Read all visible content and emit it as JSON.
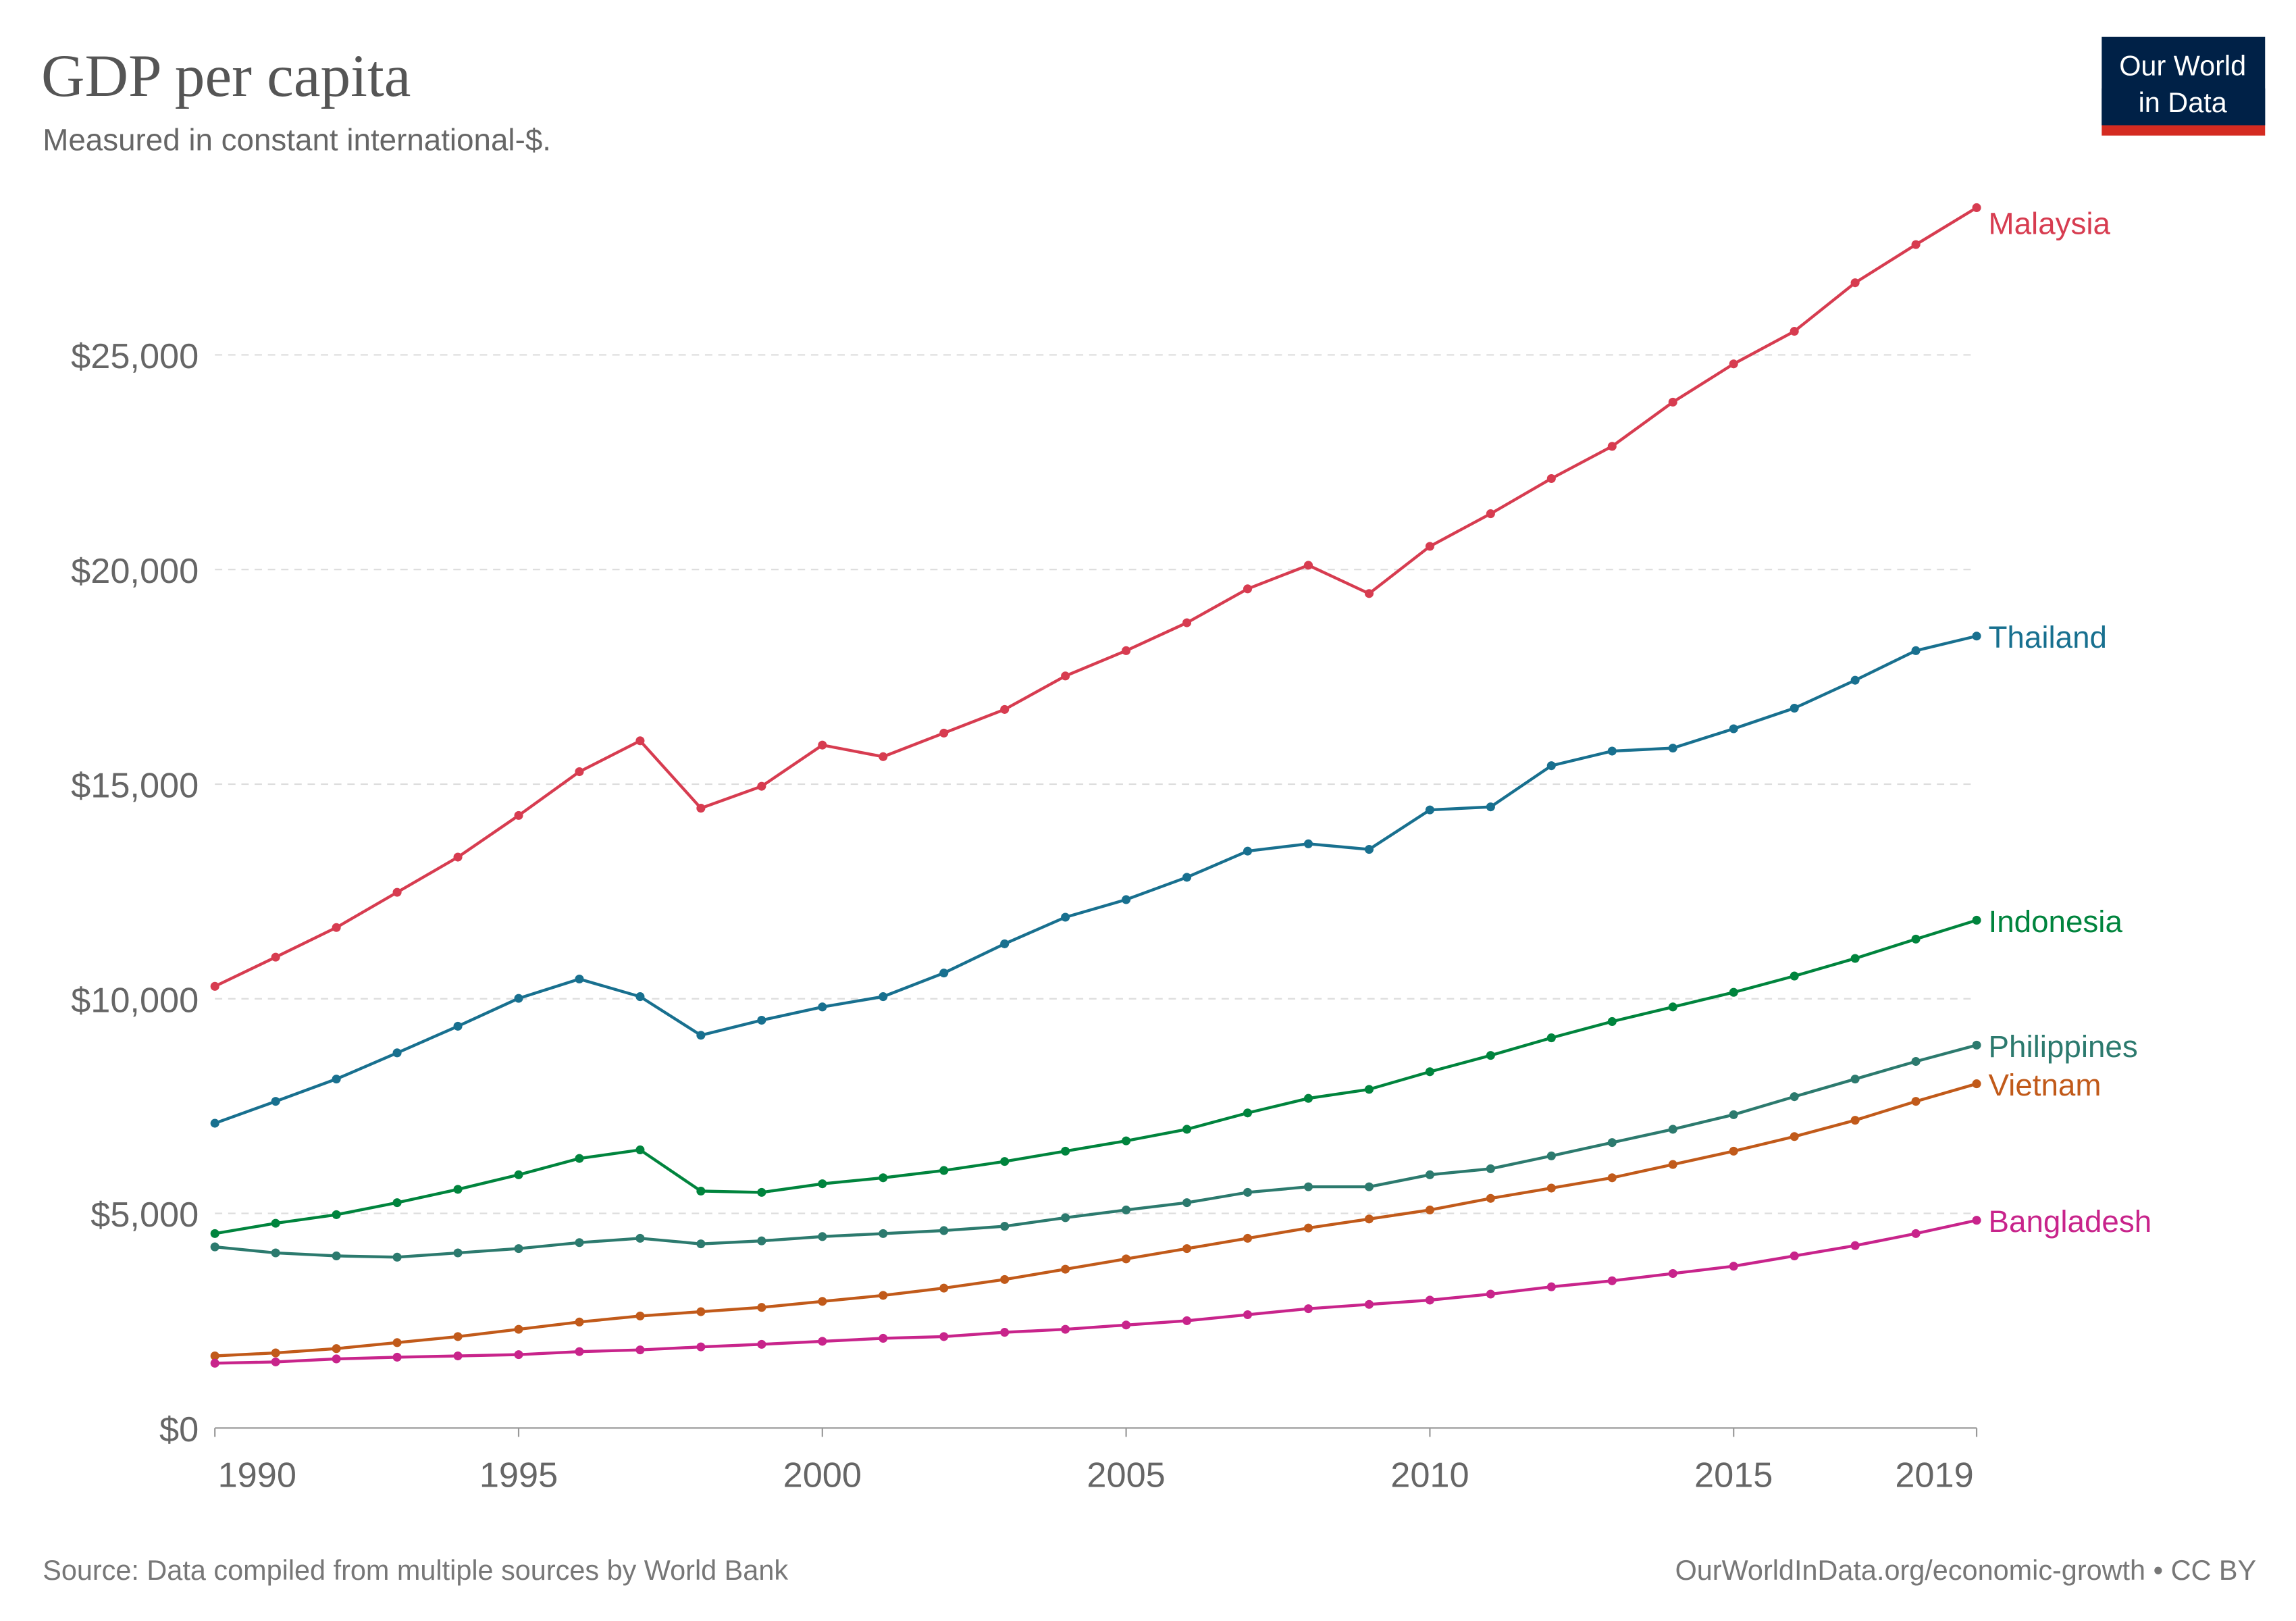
{
  "header": {
    "title": "GDP per capita",
    "subtitle": "Measured in constant international-$.",
    "logo": {
      "line1": "Our World",
      "line2": "in Data",
      "bg": "#002147",
      "accent": "#D42B21"
    }
  },
  "footer": {
    "source": "Source: Data compiled from multiple sources by World Bank",
    "license": "OurWorldInData.org/economic-growth • CC BY"
  },
  "chart_data": {
    "type": "line",
    "title": "GDP per capita",
    "subtitle": "Measured in constant international-$.",
    "xlim": [
      1990,
      2019
    ],
    "ylim": [
      0,
      28500
    ],
    "grid": "horizontal dashed",
    "legend": "right (end-of-line labels)",
    "x_ticks": [
      {
        "value": 1990,
        "label": "1990"
      },
      {
        "value": 1995,
        "label": "1995"
      },
      {
        "value": 2000,
        "label": "2000"
      },
      {
        "value": 2005,
        "label": "2005"
      },
      {
        "value": 2010,
        "label": "2010"
      },
      {
        "value": 2015,
        "label": "2015"
      },
      {
        "value": 2019,
        "label": "2019"
      }
    ],
    "y_ticks": [
      {
        "value": 0,
        "label": "$0"
      },
      {
        "value": 5000,
        "label": "$5,000"
      },
      {
        "value": 10000,
        "label": "$10,000"
      },
      {
        "value": 15000,
        "label": "$15,000"
      },
      {
        "value": 20000,
        "label": "$20,000"
      },
      {
        "value": 25000,
        "label": "$25,000"
      }
    ],
    "x": [
      1990,
      1991,
      1992,
      1993,
      1994,
      1995,
      1996,
      1997,
      1998,
      1999,
      2000,
      2001,
      2002,
      2003,
      2004,
      2005,
      2006,
      2007,
      2008,
      2009,
      2010,
      2011,
      2012,
      2013,
      2014,
      2015,
      2016,
      2017,
      2018,
      2019
    ],
    "series": [
      {
        "name": "Malaysia",
        "color": "#D73C50",
        "values": [
          10290,
          10970,
          11660,
          12480,
          13300,
          14270,
          15290,
          16010,
          14440,
          14950,
          15910,
          15640,
          16190,
          16740,
          17520,
          18110,
          18760,
          19550,
          20100,
          19440,
          20540,
          21300,
          22120,
          22870,
          23900,
          24790,
          25550,
          26680,
          27570,
          28430
        ]
      },
      {
        "name": "Thailand",
        "color": "#18708F",
        "values": [
          7100,
          7610,
          8130,
          8740,
          9360,
          10010,
          10460,
          10050,
          9150,
          9500,
          9810,
          10050,
          10600,
          11280,
          11900,
          12310,
          12830,
          13440,
          13610,
          13480,
          14400,
          14470,
          15430,
          15770,
          15840,
          16290,
          16770,
          17420,
          18110,
          18450
        ]
      },
      {
        "name": "Indonesia",
        "color": "#00843D",
        "values": [
          4530,
          4770,
          4970,
          5250,
          5560,
          5900,
          6280,
          6480,
          5520,
          5490,
          5690,
          5830,
          6000,
          6210,
          6450,
          6690,
          6960,
          7340,
          7680,
          7890,
          8300,
          8680,
          9090,
          9470,
          9810,
          10150,
          10530,
          10940,
          11390,
          11830
        ]
      },
      {
        "name": "Philippines",
        "color": "#2C7A6E",
        "values": [
          4220,
          4080,
          4010,
          3980,
          4080,
          4180,
          4320,
          4420,
          4290,
          4360,
          4460,
          4530,
          4600,
          4700,
          4900,
          5080,
          5250,
          5490,
          5620,
          5620,
          5900,
          6040,
          6340,
          6650,
          6960,
          7300,
          7720,
          8130,
          8540,
          8920
        ]
      },
      {
        "name": "Vietnam",
        "color": "#C15A1A",
        "values": [
          1680,
          1750,
          1850,
          1990,
          2130,
          2300,
          2470,
          2610,
          2710,
          2810,
          2950,
          3090,
          3260,
          3460,
          3700,
          3940,
          4180,
          4420,
          4660,
          4870,
          5080,
          5350,
          5590,
          5830,
          6140,
          6450,
          6790,
          7170,
          7610,
          8020
        ]
      },
      {
        "name": "Bangladesh",
        "color": "#C8248B",
        "values": [
          1510,
          1540,
          1610,
          1650,
          1680,
          1710,
          1780,
          1820,
          1890,
          1950,
          2020,
          2090,
          2130,
          2230,
          2300,
          2400,
          2500,
          2640,
          2780,
          2880,
          2980,
          3120,
          3290,
          3430,
          3600,
          3770,
          4010,
          4250,
          4530,
          4840
        ]
      }
    ]
  }
}
